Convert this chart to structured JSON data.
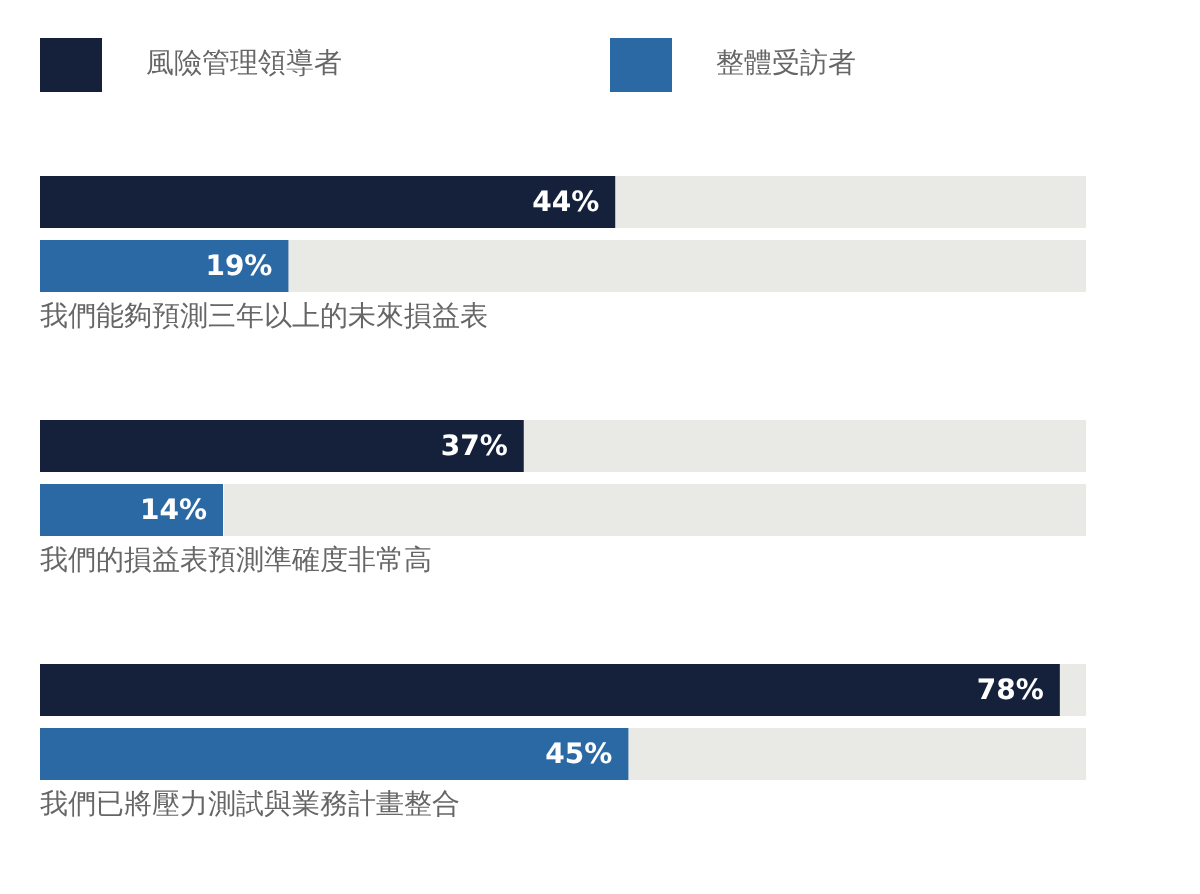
{
  "chart_data": {
    "type": "bar",
    "orientation": "horizontal",
    "categories": [
      "我們能夠預測三年以上的未來損益表",
      "我們的損益表預測準確度非常高",
      "我們已將壓力測試與業務計畫整合"
    ],
    "series": [
      {
        "name": "風險管理領導者",
        "color": "#15213b",
        "values": [
          44,
          37,
          78
        ],
        "value_labels": [
          "44%",
          "37%",
          "78%"
        ]
      },
      {
        "name": "整體受訪者",
        "color": "#2b69a5",
        "values": [
          19,
          14,
          45
        ],
        "value_labels": [
          "19%",
          "14%",
          "45%"
        ]
      }
    ],
    "xlim": [
      0,
      80
    ],
    "tick_labels": "y",
    "legend": "top left"
  }
}
